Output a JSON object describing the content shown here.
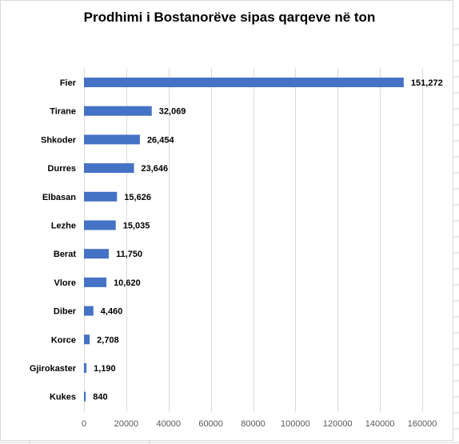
{
  "chart_data": {
    "type": "bar",
    "orientation": "horizontal",
    "title": "Prodhimi i Bostanorëve sipas qarqeve në ton",
    "xlabel": "",
    "ylabel": "",
    "categories": [
      "Fier",
      "Tirane",
      "Shkoder",
      "Durres",
      "Elbasan",
      "Lezhe",
      "Berat",
      "Vlore",
      "Diber",
      "Korce",
      "Gjirokaster",
      "Kukes"
    ],
    "values": [
      151272,
      32069,
      26454,
      23646,
      15626,
      15035,
      11750,
      10620,
      4460,
      2708,
      1190,
      840
    ],
    "value_labels": [
      "151,272",
      "32,069",
      "26,454",
      "23,646",
      "15,626",
      "15,035",
      "11,750",
      "10,620",
      "4,460",
      "2,708",
      "1,190",
      "840"
    ],
    "xlim": [
      0,
      160000
    ],
    "x_ticks": [
      0,
      20000,
      40000,
      60000,
      80000,
      100000,
      120000,
      140000,
      160000
    ],
    "x_tick_labels": [
      "0",
      "20000",
      "40000",
      "60000",
      "80000",
      "100000",
      "120000",
      "140000",
      "160000"
    ],
    "grid": "vertical",
    "legend": "none",
    "colors": {
      "bar": "#4472c4",
      "gridline": "#d9d9d9"
    }
  }
}
